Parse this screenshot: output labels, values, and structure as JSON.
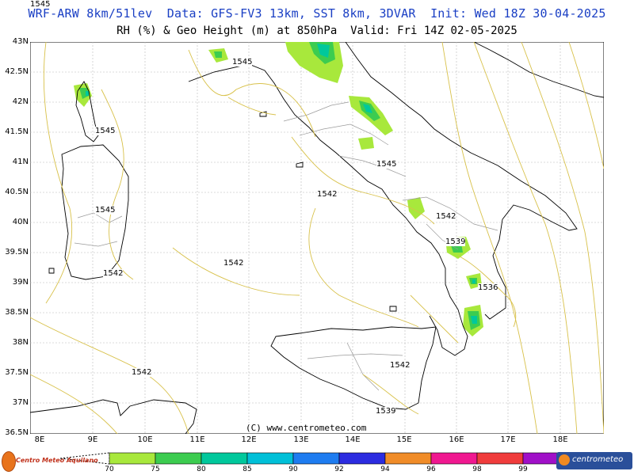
{
  "header": {
    "line1": "WRF-ARW 8km/51lev  Data: GFS-FV3 13km, SST 8km, 3DVAR  Init: Wed 18Z 30-04-2025",
    "line2": "RH (%) & Geo Height (m) at 850hPa  Valid: Fri 14Z 02-05-2025"
  },
  "axes": {
    "lat_labels": [
      "43N",
      "42.5N",
      "42N",
      "41.5N",
      "41N",
      "40.5N",
      "40N",
      "39.5N",
      "39N",
      "38.5N",
      "38N",
      "37.5N",
      "37N",
      "36.5N"
    ],
    "lon_labels": [
      "8E",
      "9E",
      "10E",
      "11E",
      "12E",
      "13E",
      "14E",
      "15E",
      "16E",
      "17E",
      "18E"
    ]
  },
  "contour_labels": [
    "1545",
    "1545",
    "1545",
    "1545",
    "1542",
    "1545",
    "1542",
    "1542",
    "1542",
    "1539",
    "1536",
    "1542",
    "1542",
    "1539"
  ],
  "credit": "(C) www.centrometeo.com",
  "colorbar": {
    "labels": [
      "70",
      "75",
      "80",
      "85",
      "90",
      "92",
      "94",
      "96",
      "98",
      "99"
    ],
    "colors": [
      "#a8e83c",
      "#3ccc50",
      "#00c89c",
      "#00c0d8",
      "#1e7cf0",
      "#2c2ce0",
      "#f08c28",
      "#f01890",
      "#f03c3c",
      "#a010c8",
      "#9a9a9a"
    ]
  },
  "logos": {
    "left_text": "Centro Meteo Aquilano",
    "right_text": "centrometeo"
  }
}
